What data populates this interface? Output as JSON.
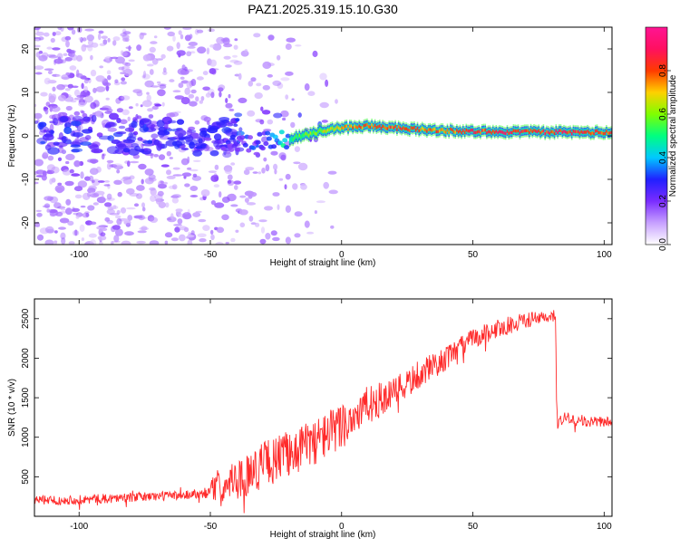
{
  "figure_title": "PAZ1.2025.319.15.10.G30",
  "colors": {
    "frame": "#000000",
    "snr_line": "#ff2a2a",
    "colormap": [
      "#ffffff",
      "#c7a0ff",
      "#7a2cff",
      "#2020ff",
      "#00c8ff",
      "#00ff80",
      "#7fff00",
      "#ffd000",
      "#ff3b00",
      "#ff1060",
      "#ff1493"
    ]
  },
  "chart_data": [
    {
      "id": "spectrogram",
      "type": "heatmap",
      "title": "PAZ1.2025.319.15.10.G30",
      "xlabel": "Height of straight line (km)",
      "ylabel": "Frequency (Hz)",
      "xlim": [
        -117,
        103
      ],
      "ylim": [
        -25,
        25
      ],
      "xticks": [
        -100,
        -50,
        0,
        50,
        100
      ],
      "xtick_labels": [
        "-100",
        "-50",
        "0",
        "50",
        "100"
      ],
      "yticks": [
        -20,
        -10,
        0,
        10,
        20
      ],
      "ytick_labels": [
        "-20",
        "-10",
        "0",
        "10",
        "20"
      ],
      "colorbar": {
        "label": "Normalized spectral amplitude",
        "range": [
          0,
          1
        ],
        "ticks": [
          0.0,
          0.2,
          0.4,
          0.6,
          0.8
        ],
        "tick_labels": [
          "0.0",
          "0.2",
          "0.4",
          "0.6",
          "0.8"
        ]
      },
      "ridge": {
        "description_x": [
          -40,
          -30,
          -22,
          -15,
          -5,
          0,
          10,
          20,
          30,
          50,
          70,
          90,
          103
        ],
        "frequency_hz": [
          -2.0,
          -1.5,
          -1.0,
          0.0,
          1.5,
          1.8,
          2.3,
          1.8,
          1.4,
          1.0,
          0.9,
          0.8,
          0.8
        ],
        "amplitude": [
          0.25,
          0.3,
          0.45,
          0.6,
          0.7,
          0.75,
          0.8,
          0.85,
          0.8,
          0.85,
          0.9,
          0.88,
          0.85
        ]
      }
    },
    {
      "id": "snr",
      "type": "line",
      "xlabel": "Height of straight line (km)",
      "ylabel": "SNR (10 * v/v)",
      "xlim": [
        -117,
        103
      ],
      "ylim": [
        0,
        2750
      ],
      "xticks": [
        -100,
        -50,
        0,
        50,
        100
      ],
      "xtick_labels": [
        "-100",
        "-50",
        "0",
        "50",
        "100"
      ],
      "yticks": [
        500,
        1000,
        1500,
        2000,
        2500
      ],
      "ytick_labels": [
        "500",
        "1000",
        "1500",
        "2000",
        "2500"
      ],
      "series": [
        {
          "name": "SNR",
          "x": [
            -117,
            -100,
            -80,
            -60,
            -52,
            -50,
            -40,
            -30,
            -20,
            -10,
            0,
            10,
            20,
            30,
            40,
            50,
            60,
            70,
            80,
            81.5,
            82,
            85,
            90,
            95,
            103
          ],
          "y": [
            200,
            210,
            240,
            270,
            300,
            330,
            450,
            650,
            800,
            950,
            1150,
            1400,
            1550,
            1800,
            2000,
            2250,
            2380,
            2480,
            2520,
            2500,
            1150,
            1250,
            1200,
            1190,
            1200
          ],
          "noise_amplitude": [
            60,
            60,
            60,
            60,
            70,
            150,
            250,
            300,
            300,
            300,
            300,
            250,
            200,
            180,
            150,
            130,
            120,
            100,
            90,
            80,
            100,
            80,
            70,
            70,
            60
          ]
        }
      ]
    }
  ]
}
